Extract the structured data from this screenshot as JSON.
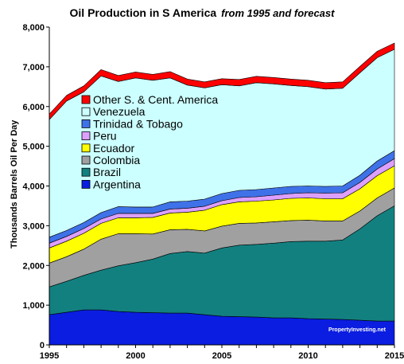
{
  "chart_data": {
    "type": "area",
    "stacked": true,
    "title": "Oil Production in S America",
    "subtitle": "from 1995 and forecast",
    "xlabel": "",
    "ylabel": "Thousands Barrels Oil Per Day",
    "xlim": [
      1995,
      2015
    ],
    "ylim": [
      0,
      8000
    ],
    "yticks": [
      "0",
      "1,000",
      "2,000",
      "3,000",
      "4,000",
      "5,000",
      "6,000",
      "7,000",
      "8,000"
    ],
    "xticks": [
      "1995",
      "2000",
      "2005",
      "2010",
      "2015"
    ],
    "x": [
      1995,
      1996,
      1997,
      1998,
      1999,
      2000,
      2001,
      2002,
      2003,
      2004,
      2005,
      2006,
      2007,
      2008,
      2009,
      2010,
      2011,
      2012,
      2013,
      2014,
      2015
    ],
    "legend_position": "center-left",
    "series": [
      {
        "name": "Argentina",
        "color": "#0a1de0",
        "values": [
          760,
          820,
          880,
          880,
          840,
          820,
          810,
          800,
          800,
          760,
          720,
          710,
          700,
          680,
          680,
          660,
          650,
          640,
          620,
          600,
          600
        ]
      },
      {
        "name": "Brazil",
        "color": "#138080",
        "values": [
          700,
          780,
          870,
          1000,
          1150,
          1250,
          1350,
          1500,
          1550,
          1550,
          1720,
          1800,
          1830,
          1880,
          1920,
          1950,
          1960,
          2000,
          2300,
          2650,
          2900
        ]
      },
      {
        "name": "Colombia",
        "color": "#a0a0a0",
        "values": [
          600,
          620,
          660,
          780,
          810,
          730,
          630,
          600,
          560,
          560,
          550,
          550,
          540,
          540,
          530,
          530,
          510,
          480,
          450,
          450,
          450
        ]
      },
      {
        "name": "Ecuador",
        "color": "#ffff00",
        "values": [
          380,
          390,
          400,
          400,
          400,
          400,
          420,
          420,
          430,
          520,
          540,
          540,
          550,
          550,
          560,
          560,
          560,
          560,
          560,
          560,
          560
        ]
      },
      {
        "name": "Peru",
        "color": "#dda0ff",
        "values": [
          120,
          120,
          120,
          110,
          110,
          110,
          100,
          100,
          100,
          100,
          100,
          110,
          110,
          120,
          120,
          130,
          140,
          150,
          160,
          170,
          180
        ]
      },
      {
        "name": "Trinidad & Tobago",
        "color": "#3f72e8",
        "values": [
          150,
          150,
          150,
          160,
          170,
          160,
          160,
          180,
          180,
          180,
          180,
          180,
          180,
          180,
          180,
          170,
          170,
          170,
          180,
          200,
          200
        ]
      },
      {
        "name": "Venezuela",
        "color": "#ccffff",
        "values": [
          2960,
          3260,
          3290,
          3440,
          3150,
          3250,
          3190,
          3120,
          2920,
          2800,
          2740,
          2630,
          2690,
          2620,
          2540,
          2500,
          2450,
          2460,
          2580,
          2600,
          2550
        ]
      },
      {
        "name": "Other S. & Cent. America",
        "color": "#ff0000",
        "values": [
          140,
          140,
          150,
          160,
          150,
          150,
          150,
          160,
          150,
          150,
          150,
          160,
          160,
          160,
          160,
          160,
          160,
          160,
          160,
          160,
          160
        ]
      }
    ],
    "annotations": [
      "PropertyInvesting.net"
    ]
  }
}
